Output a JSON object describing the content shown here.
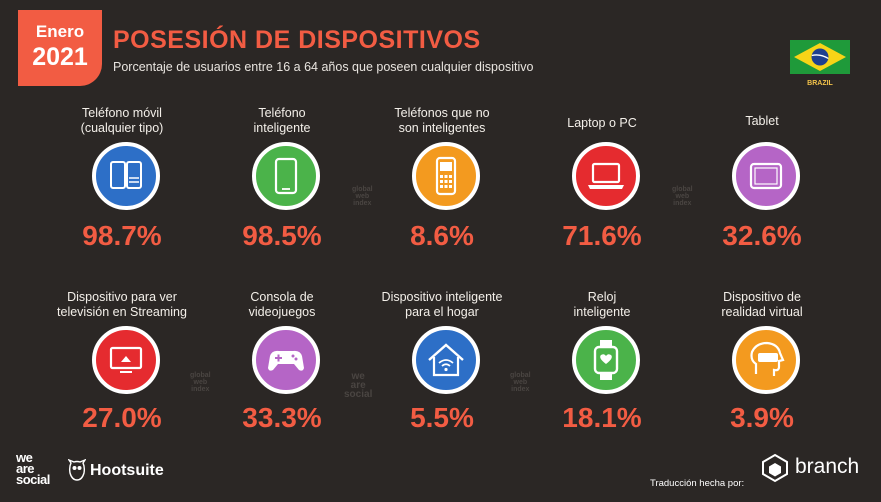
{
  "badge": {
    "month": "Enero",
    "year": "2021"
  },
  "header": {
    "title": "POSESIÓN DE DISPOSITIVOS",
    "subtitle": "Porcentaje de usuarios entre 16 a 64 años que poseen cualquier dispositivo"
  },
  "country": {
    "name": "BRAZIL"
  },
  "colors": {
    "background": "#2b2725",
    "accent": "#f25c43",
    "blue": "#2d6fc7",
    "green": "#4bb34a",
    "orange": "#f39a1f",
    "red": "#e52b2f",
    "purple": "#b565c6"
  },
  "row1": [
    {
      "label": "Teléfono móvil\n(cualquier tipo)",
      "value": "98.7%",
      "icon": "mobile-phones-icon"
    },
    {
      "label": "Teléfono\ninteligente",
      "value": "98.5%",
      "icon": "smartphone-icon"
    },
    {
      "label": "Teléfonos que no\nson inteligentes",
      "value": "8.6%",
      "icon": "feature-phone-icon"
    },
    {
      "label": "Laptop o PC",
      "value": "71.6%",
      "icon": "laptop-icon"
    },
    {
      "label": "Tablet",
      "value": "32.6%",
      "icon": "tablet-icon"
    }
  ],
  "row2": [
    {
      "label": "Dispositivo para ver\ntelevisión en Streaming",
      "value": "27.0%",
      "icon": "streaming-tv-icon"
    },
    {
      "label": "Consola de\nvideojuegos",
      "value": "33.3%",
      "icon": "game-controller-icon"
    },
    {
      "label": "Dispositivo inteligente\npara el hogar",
      "value": "5.5%",
      "icon": "smart-home-icon"
    },
    {
      "label": "Reloj\ninteligente",
      "value": "18.1%",
      "icon": "smartwatch-icon"
    },
    {
      "label": "Dispositivo de\nrealidad virtual",
      "value": "3.9%",
      "icon": "vr-headset-icon"
    }
  ],
  "footer": {
    "logo_left": "we\nare\nsocial",
    "logo_hootsuite": "Hootsuite",
    "credit": "Traducción hecha por:",
    "branch": "branch"
  },
  "watermarks": {
    "gwi": "global\nweb\nindex",
    "was": "we\nare\nsocial"
  }
}
